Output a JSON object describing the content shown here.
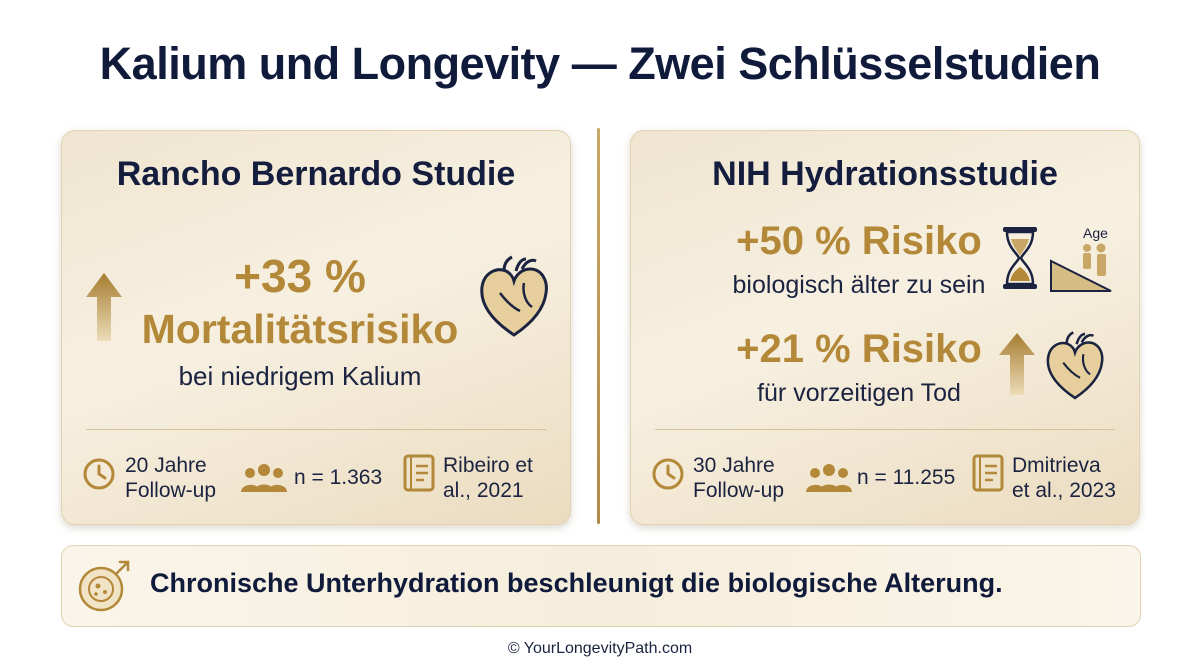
{
  "title": "Kalium und Longevity — Zwei Schlüsselstudien",
  "left_card": {
    "title": "Rancho Bernardo Studie",
    "stat": "+33 %",
    "stat_label": "Mortalitätsrisiko",
    "stat_sub": "bei niedrigem Kalium",
    "duration_line1": "20 Jahre",
    "duration_line2": "Follow-up",
    "sample": "n = 1.363",
    "ref_line1": "Ribeiro et",
    "ref_line2": "al., 2021"
  },
  "right_card": {
    "title": "NIH Hydrationsstudie",
    "stat1": "+50 % Risiko",
    "stat1_sub": "biologisch älter zu sein",
    "age_label": "Age",
    "stat2": "+21 % Risiko",
    "stat2_sub": "für vorzeitigen Tod",
    "duration_line1": "30 Jahre",
    "duration_line2": "Follow-up",
    "sample": "n = 11.255",
    "ref_line1": "Dmitrieva",
    "ref_line2": "et al., 2023"
  },
  "banner": {
    "text": "Chronische Unterhydration beschleunigt die biologische Alterung."
  },
  "footer": "© YourLongevityPath.com",
  "colors": {
    "gold": "#b38838",
    "navy": "#101a3a"
  }
}
